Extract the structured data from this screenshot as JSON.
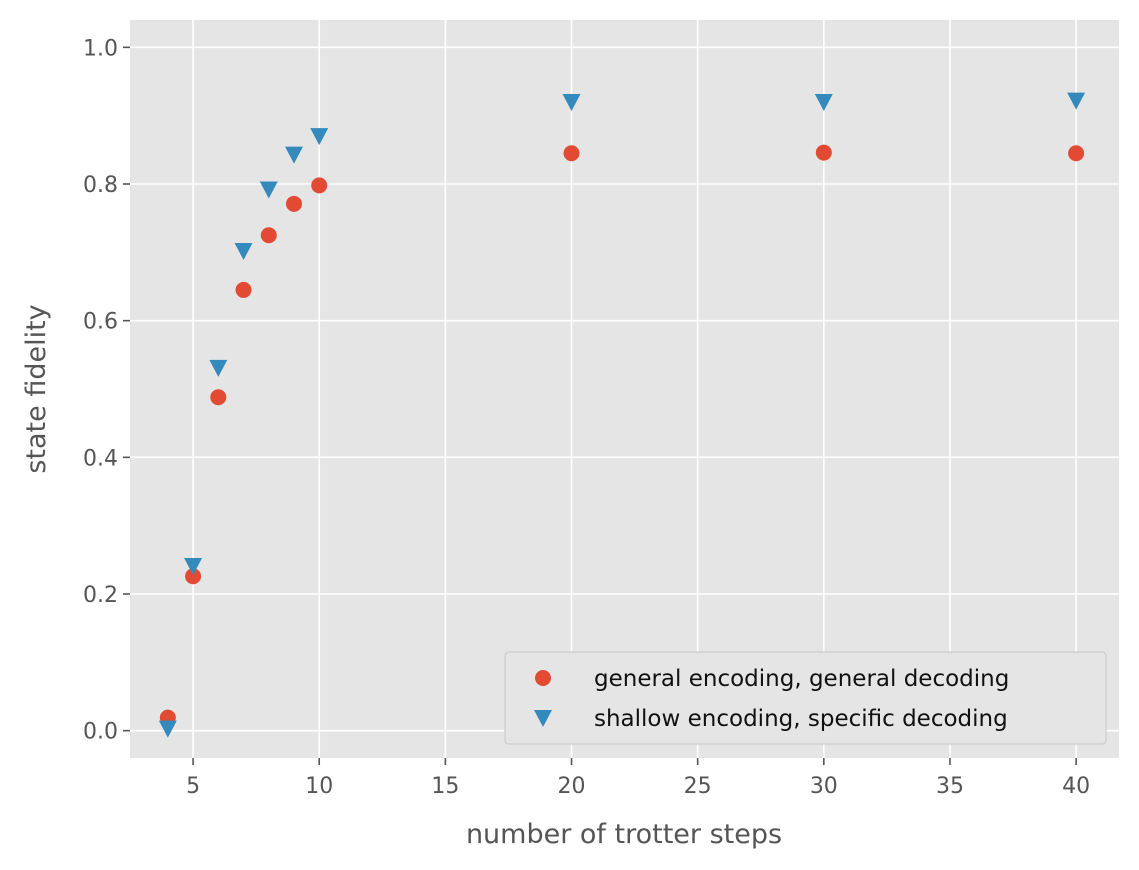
{
  "chart_data": {
    "type": "scatter",
    "title": "",
    "xlabel": "number of trotter steps",
    "ylabel": "state fidelity",
    "xlim": [
      2.5,
      41.7
    ],
    "ylim": [
      -0.04,
      1.04
    ],
    "xticks": [
      5,
      10,
      15,
      20,
      25,
      30,
      35,
      40
    ],
    "yticks": [
      0.0,
      0.2,
      0.4,
      0.6,
      0.8,
      1.0
    ],
    "xtick_labels": [
      "5",
      "10",
      "15",
      "20",
      "25",
      "30",
      "35",
      "40"
    ],
    "ytick_labels": [
      "0.0",
      "0.2",
      "0.4",
      "0.6",
      "0.8",
      "1.0"
    ],
    "grid": true,
    "legend_position": "lower-right",
    "series": [
      {
        "name": "general encoding, general decoding",
        "marker": "circle",
        "color": "#E24A33",
        "x": [
          4,
          5,
          6,
          7,
          8,
          9,
          10,
          20,
          30,
          40
        ],
        "y": [
          0.019,
          0.226,
          0.488,
          0.645,
          0.725,
          0.771,
          0.798,
          0.845,
          0.846,
          0.845
        ]
      },
      {
        "name": "shallow encoding, specific decoding",
        "marker": "triangle-down",
        "color": "#348ABD",
        "x": [
          4,
          5,
          6,
          7,
          8,
          9,
          10,
          20,
          30,
          40
        ],
        "y": [
          0.003,
          0.241,
          0.531,
          0.702,
          0.792,
          0.843,
          0.87,
          0.92,
          0.92,
          0.922
        ]
      }
    ]
  }
}
